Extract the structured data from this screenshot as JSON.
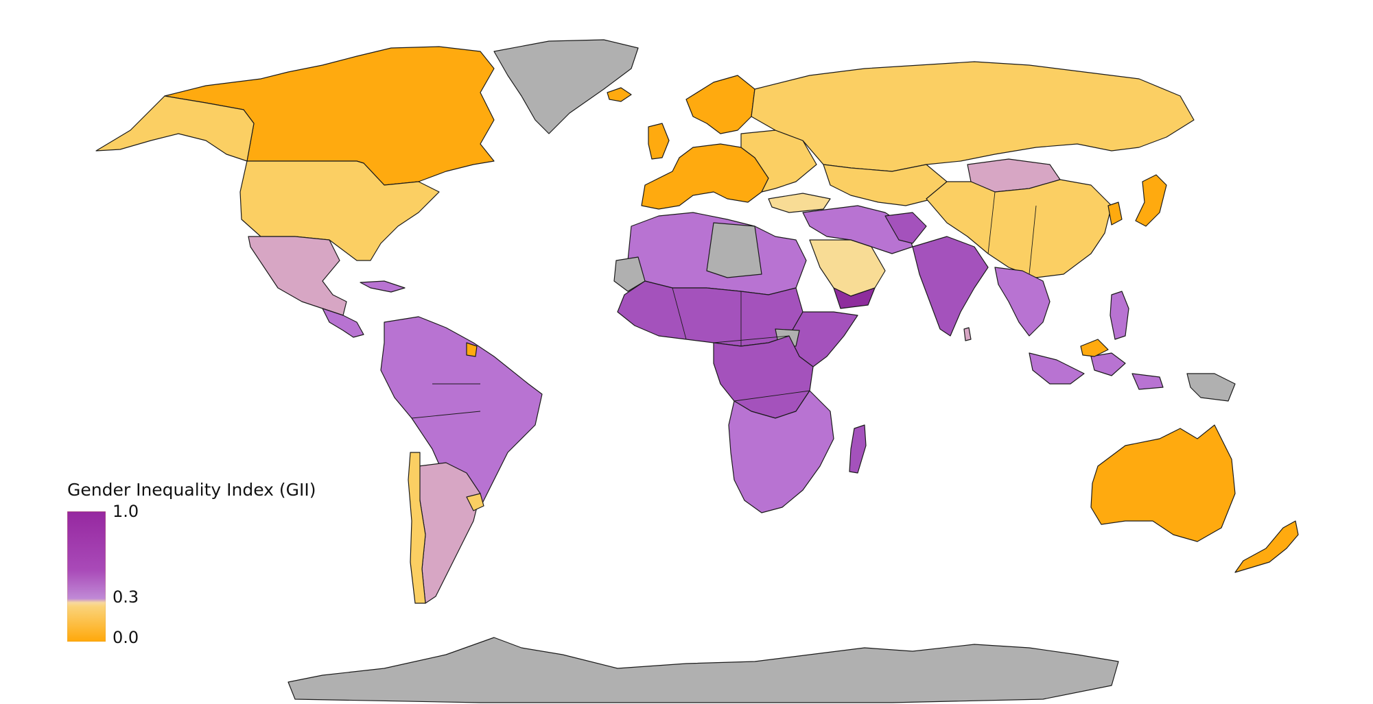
{
  "legend": {
    "title": "Gender Inequality Index (GII)",
    "ticks": [
      {
        "value": 1.0,
        "label": "1.0"
      },
      {
        "value": 0.3,
        "label": "0.3"
      },
      {
        "value": 0.0,
        "label": "0.0"
      }
    ],
    "gradient_stops": [
      {
        "value": 1.0,
        "color": "#9628a0"
      },
      {
        "value": 0.55,
        "color": "#a94ab8"
      },
      {
        "value": 0.33,
        "color": "#c08ad6"
      },
      {
        "value": 0.3,
        "color": "#f7d9a0"
      },
      {
        "value": 0.27,
        "color": "#fad37a"
      },
      {
        "value": 0.0,
        "color": "#ffa80a"
      }
    ],
    "no_data_color": "#b0b0b0"
  },
  "colors": {
    "very_low": "#ffaa0f",
    "low": "#fbcf63",
    "light_low": "#f8dc95",
    "pinkish": "#d7a6c4",
    "mid_purple": "#b873d2",
    "purple": "#a452bc",
    "dark_purple": "#8e2d9d",
    "no_data": "#b0b0b0"
  }
}
